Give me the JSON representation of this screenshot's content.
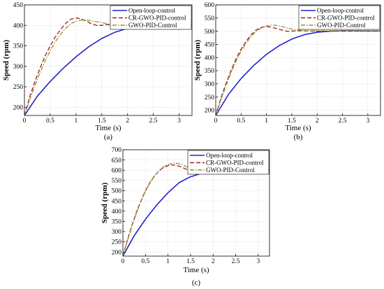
{
  "colors": {
    "open_loop": "#2323c8",
    "cr_gwo": "#a01e1e",
    "gwo": "#8c9632",
    "axis": "#000000",
    "grid": "#b4b4b4"
  },
  "chart_data": [
    {
      "type": "line",
      "caption": "(a)",
      "xlabel": "Time (s)",
      "ylabel": "Speed (rpm)",
      "xlim": [
        0,
        3.25
      ],
      "ylim": [
        180,
        450
      ],
      "xticks": [
        0,
        0.5,
        1,
        1.5,
        2,
        2.5,
        3
      ],
      "xtick_labels": [
        "0",
        "0.5",
        "1",
        "1.5",
        "2",
        "2.5",
        "3"
      ],
      "yticks": [
        200,
        250,
        300,
        350,
        400,
        450
      ],
      "ytick_labels": [
        "200",
        "250",
        "300",
        "350",
        "400",
        "450"
      ],
      "grid": true,
      "legend_position": "top-right",
      "series": [
        {
          "name": "Open-loop-control",
          "style": "solid",
          "x": [
            0,
            0.25,
            0.5,
            0.75,
            1.0,
            1.25,
            1.5,
            1.75,
            2.0,
            2.25,
            2.5,
            2.75,
            3.0,
            3.25
          ],
          "y": [
            180,
            227,
            263,
            295,
            323,
            348,
            368,
            383,
            393,
            398,
            400,
            401,
            401,
            401
          ]
        },
        {
          "name": "CR-GWO-PID-control",
          "style": "dashed",
          "x": [
            0,
            0.1,
            0.2,
            0.3,
            0.4,
            0.5,
            0.6,
            0.7,
            0.8,
            0.9,
            1.0,
            1.1,
            1.2,
            1.3,
            1.4,
            1.5,
            1.6,
            1.7,
            2.0,
            2.5,
            3.0,
            3.25
          ],
          "y": [
            180,
            225,
            262,
            295,
            325,
            350,
            372,
            390,
            405,
            415,
            418,
            416,
            410,
            404,
            400,
            400,
            402,
            401,
            400,
            400,
            400,
            400
          ]
        },
        {
          "name": "GWO-PID-Control",
          "style": "dashdot",
          "x": [
            0,
            0.1,
            0.2,
            0.3,
            0.4,
            0.5,
            0.6,
            0.7,
            0.8,
            0.9,
            1.0,
            1.1,
            1.2,
            1.3,
            1.4,
            1.5,
            1.6,
            1.7,
            1.8,
            2.0,
            2.5,
            3.0,
            3.25
          ],
          "y": [
            180,
            218,
            252,
            284,
            313,
            338,
            360,
            378,
            393,
            404,
            410,
            413,
            413,
            411,
            409,
            407,
            404,
            402,
            401,
            401,
            401,
            401,
            401
          ]
        }
      ]
    },
    {
      "type": "line",
      "caption": "(b)",
      "xlabel": "Time (s)",
      "ylabel": "Speed (rpm)",
      "xlim": [
        0,
        3.25
      ],
      "ylim": [
        180,
        600
      ],
      "xticks": [
        0,
        0.5,
        1,
        1.5,
        2,
        2.5,
        3
      ],
      "xtick_labels": [
        "0",
        "0.5",
        "1",
        "1.5",
        "2",
        "2.5",
        "3"
      ],
      "yticks": [
        200,
        250,
        300,
        350,
        400,
        450,
        500,
        550,
        600
      ],
      "ytick_labels": [
        "200",
        "250",
        "300",
        "350",
        "400",
        "450",
        "500",
        "550",
        "600"
      ],
      "grid": true,
      "legend_position": "top-right",
      "series": [
        {
          "name": "Open-loop-control",
          "style": "solid",
          "x": [
            0,
            0.25,
            0.5,
            0.75,
            1.0,
            1.25,
            1.5,
            1.75,
            2.0,
            2.25,
            2.5,
            2.75,
            3.0,
            3.25
          ],
          "y": [
            180,
            260,
            320,
            370,
            412,
            445,
            470,
            487,
            496,
            500,
            502,
            502,
            501,
            501
          ]
        },
        {
          "name": "CR-GWO-PID-control",
          "style": "dashed",
          "x": [
            0,
            0.1,
            0.2,
            0.3,
            0.4,
            0.5,
            0.6,
            0.7,
            0.8,
            0.9,
            1.0,
            1.1,
            1.2,
            1.3,
            1.4,
            1.5,
            1.6,
            1.8,
            2.0,
            2.5,
            3.0,
            3.25
          ],
          "y": [
            180,
            245,
            300,
            350,
            395,
            432,
            462,
            487,
            505,
            515,
            518,
            515,
            510,
            505,
            500,
            500,
            502,
            501,
            500,
            500,
            500,
            500
          ]
        },
        {
          "name": "GWO-PID-Control",
          "style": "dashdot",
          "x": [
            0,
            0.1,
            0.2,
            0.3,
            0.4,
            0.5,
            0.6,
            0.7,
            0.8,
            0.9,
            1.0,
            1.1,
            1.2,
            1.3,
            1.4,
            1.5,
            1.6,
            1.8,
            2.0,
            2.5,
            3.0,
            3.25
          ],
          "y": [
            180,
            238,
            292,
            342,
            386,
            424,
            455,
            480,
            500,
            512,
            520,
            523,
            522,
            518,
            513,
            508,
            505,
            502,
            502,
            502,
            502,
            502
          ]
        }
      ]
    },
    {
      "type": "line",
      "caption": "(c)",
      "xlabel": "Time (s)",
      "ylabel": "Speed (rpm)",
      "xlim": [
        0,
        3.25
      ],
      "ylim": [
        180,
        700
      ],
      "xticks": [
        0,
        0.5,
        1,
        1.5,
        2,
        2.5,
        3
      ],
      "xtick_labels": [
        "0",
        "0.5",
        "1",
        "1.5",
        "2",
        "2.5",
        "3"
      ],
      "yticks": [
        200,
        250,
        300,
        350,
        400,
        450,
        500,
        550,
        600,
        650,
        700
      ],
      "ytick_labels": [
        "200",
        "250",
        "300",
        "350",
        "400",
        "450",
        "500",
        "550",
        "600",
        "650",
        "700"
      ],
      "grid": true,
      "legend_position": "top-right",
      "series": [
        {
          "name": "Open-loop-control",
          "style": "solid",
          "x": [
            0,
            0.25,
            0.5,
            0.75,
            1.0,
            1.25,
            1.5,
            1.75,
            2.0,
            2.25,
            2.5,
            2.75,
            3.0,
            3.25
          ],
          "y": [
            180,
            280,
            360,
            430,
            490,
            540,
            568,
            585,
            595,
            598,
            600,
            600,
            600,
            600
          ]
        },
        {
          "name": "CR-GWO-PID-control",
          "style": "dashed",
          "x": [
            0,
            0.1,
            0.2,
            0.3,
            0.4,
            0.5,
            0.6,
            0.7,
            0.8,
            0.9,
            1.0,
            1.1,
            1.2,
            1.3,
            1.4,
            1.5,
            1.6,
            1.8,
            2.0,
            2.5,
            3.0,
            3.25
          ],
          "y": [
            180,
            260,
            330,
            395,
            450,
            500,
            540,
            572,
            597,
            613,
            622,
            626,
            623,
            615,
            605,
            598,
            597,
            599,
            600,
            600,
            600,
            600
          ]
        },
        {
          "name": "GWO-PID-Control",
          "style": "dashdot",
          "x": [
            0,
            0.1,
            0.2,
            0.3,
            0.4,
            0.5,
            0.6,
            0.7,
            0.8,
            0.9,
            1.0,
            1.1,
            1.2,
            1.3,
            1.4,
            1.5,
            1.6,
            1.8,
            2.0,
            2.5,
            3.0,
            3.25
          ],
          "y": [
            180,
            255,
            325,
            390,
            447,
            497,
            538,
            572,
            598,
            617,
            628,
            634,
            634,
            628,
            618,
            608,
            602,
            600,
            601,
            601,
            601,
            601
          ]
        }
      ]
    }
  ]
}
